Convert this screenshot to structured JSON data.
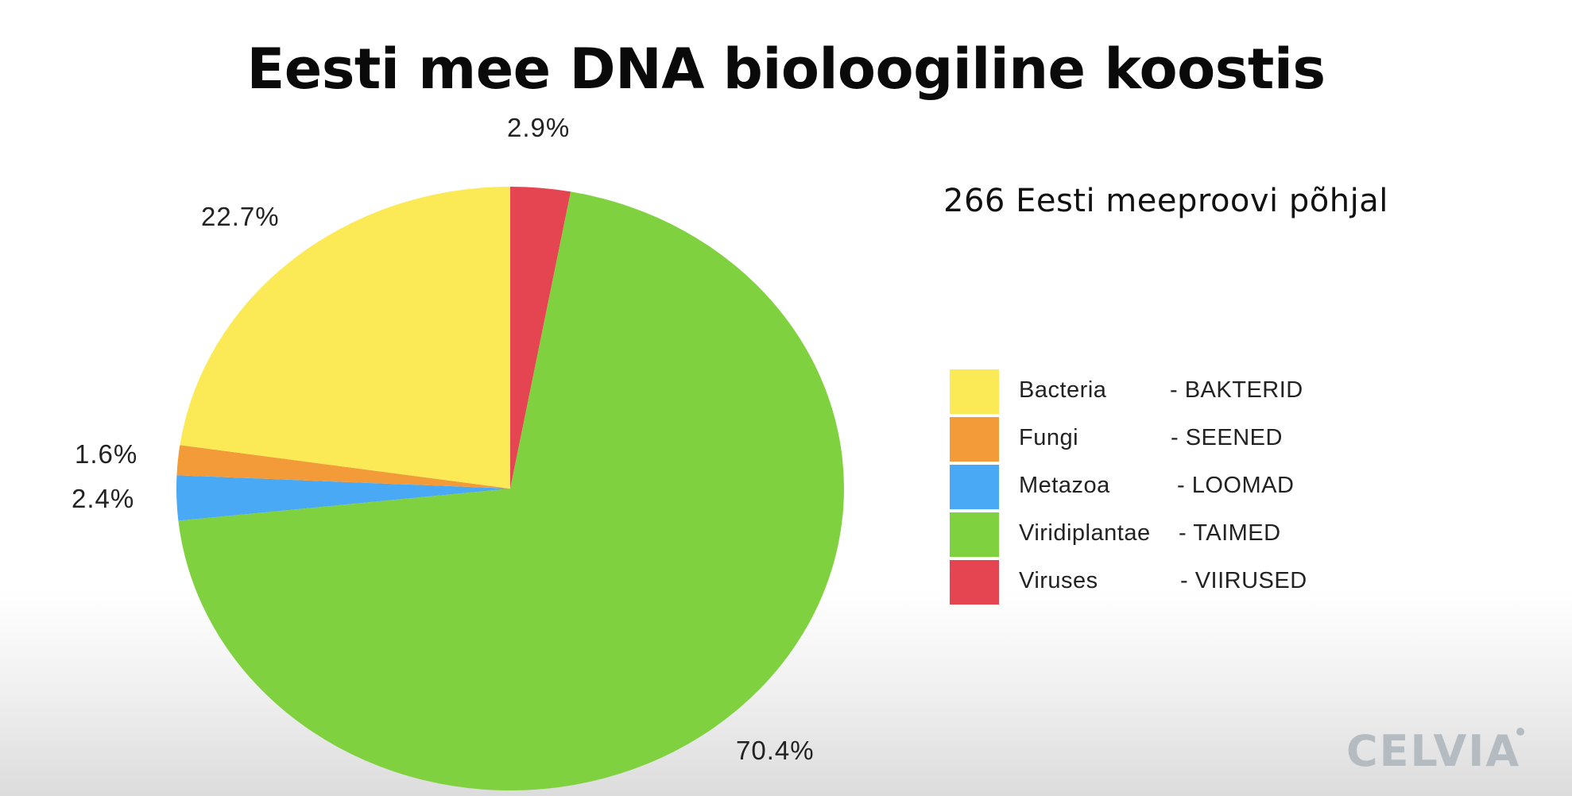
{
  "chart_data": {
    "type": "pie",
    "title": "Eesti mee DNA bioloogiline koostis",
    "subtitle": "266 Eesti meeproovi põhjal",
    "slices": [
      {
        "name": "Viruses",
        "name_et": "- VIIRUSED",
        "value": 2.9,
        "label": "2.9%",
        "color": "#e54451"
      },
      {
        "name": "Viridiplantae",
        "name_et": "- TAIMED",
        "value": 70.4,
        "label": "70.4%",
        "color": "#80d13f"
      },
      {
        "name": "Metazoa",
        "name_et": "- LOOMAD",
        "value": 2.4,
        "label": "2.4%",
        "color": "#4aa9f4"
      },
      {
        "name": "Fungi",
        "name_et": "- SEENED",
        "value": 1.6,
        "label": "1.6%",
        "color": "#f29b38"
      },
      {
        "name": "Bacteria",
        "name_et": "- BAKTERID",
        "value": 22.7,
        "label": "22.7%",
        "color": "#fbea55"
      }
    ],
    "legend": [
      {
        "name": "Bacteria",
        "name_et": "- BAKTERID",
        "color": "#fbea55"
      },
      {
        "name": "Fungi",
        "name_et": "- SEENED",
        "color": "#f29b38"
      },
      {
        "name": "Metazoa",
        "name_et": "- LOOMAD",
        "color": "#4aa9f4"
      },
      {
        "name": "Viridiplantae",
        "name_et": "- TAIMED",
        "color": "#80d13f"
      },
      {
        "name": "Viruses",
        "name_et": "- VIIRUSED",
        "color": "#e54451"
      }
    ],
    "legend_placement": "right"
  },
  "logo": {
    "text": "CELVIA"
  }
}
